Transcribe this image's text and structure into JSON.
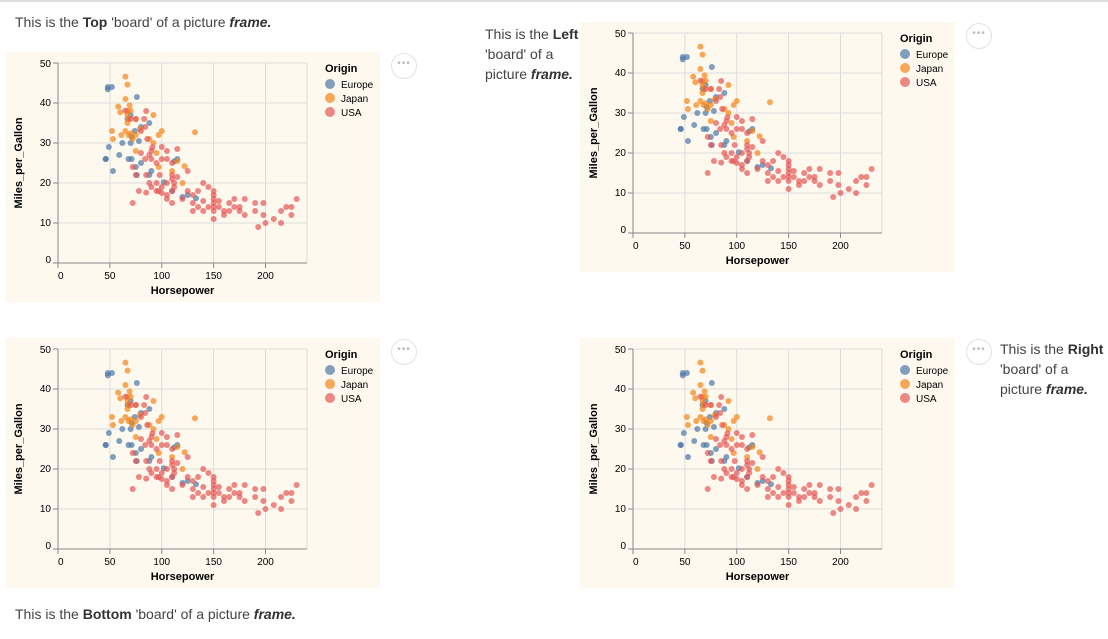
{
  "texts": {
    "top": {
      "pre": "This is the ",
      "bold": "Top",
      "mid": " 'board' of a picture ",
      "ital": "frame."
    },
    "left": {
      "pre": "This is the ",
      "bold": "Left",
      "mid": " 'board' of a picture ",
      "ital": "frame."
    },
    "right": {
      "pre": "This is the ",
      "bold": "Right",
      "mid": " 'board' of a picture ",
      "ital": "frame."
    },
    "bottom": {
      "pre": "This is the ",
      "bold": "Bottom",
      "mid": " 'board' of a picture ",
      "ital": "frame."
    }
  },
  "menu_label": "•••",
  "chart_data": {
    "type": "scatter",
    "title": "",
    "xlabel": "Horsepower",
    "ylabel": "Miles_per_Gallon",
    "xlim": [
      0,
      240
    ],
    "ylim": [
      0,
      50
    ],
    "xticks": [
      0,
      50,
      100,
      150,
      200
    ],
    "yticks": [
      0,
      10,
      20,
      30,
      40,
      50
    ],
    "grid": true,
    "legend": {
      "title": "Origin",
      "position": "right",
      "entries": [
        "Europe",
        "Japan",
        "USA"
      ]
    },
    "colors": {
      "Europe": "#4c78a8",
      "Japan": "#f58518",
      "USA": "#e45756"
    },
    "series": [
      {
        "name": "Europe",
        "points": [
          [
            46,
            26
          ],
          [
            48,
            44
          ],
          [
            48,
            43.4
          ],
          [
            52,
            44
          ],
          [
            49,
            29
          ],
          [
            59,
            27
          ],
          [
            62,
            30
          ],
          [
            67,
            36
          ],
          [
            70,
            30
          ],
          [
            71,
            26
          ],
          [
            75,
            24
          ],
          [
            76,
            41.5
          ],
          [
            78,
            30.5
          ],
          [
            80,
            25
          ],
          [
            88,
            22
          ],
          [
            90,
            23
          ],
          [
            102,
            20.2
          ],
          [
            110,
            18
          ],
          [
            112,
            25.4
          ],
          [
            115,
            26
          ],
          [
            120,
            16.5
          ],
          [
            125,
            17
          ],
          [
            133,
            16.2
          ],
          [
            76,
            22
          ],
          [
            88,
            35
          ],
          [
            70,
            37
          ],
          [
            71,
            31.5
          ],
          [
            68,
            26
          ],
          [
            53,
            23
          ],
          [
            46,
            26
          ],
          [
            74,
            33
          ],
          [
            80,
            34
          ]
        ]
      },
      {
        "name": "Japan",
        "points": [
          [
            65,
            46.6
          ],
          [
            67,
            44.6
          ],
          [
            65,
            41
          ],
          [
            69,
            39.4
          ],
          [
            58,
            39.1
          ],
          [
            60,
            37.7
          ],
          [
            67,
            38
          ],
          [
            68,
            36
          ],
          [
            52,
            33
          ],
          [
            53,
            31
          ],
          [
            61,
            32
          ],
          [
            65,
            33
          ],
          [
            67,
            35
          ],
          [
            68,
            32
          ],
          [
            70,
            32.4
          ],
          [
            72,
            31
          ],
          [
            75,
            32
          ],
          [
            75,
            36
          ],
          [
            79,
            33.5
          ],
          [
            88,
            31
          ],
          [
            92,
            37
          ],
          [
            97,
            32
          ],
          [
            100,
            33
          ],
          [
            95,
            27.5
          ],
          [
            97,
            24
          ],
          [
            120,
            20
          ],
          [
            122,
            24.2
          ],
          [
            132,
            32.7
          ],
          [
            92,
            30
          ],
          [
            110,
            23
          ],
          [
            115,
            25.5
          ],
          [
            67,
            37
          ],
          [
            70,
            38.1
          ],
          [
            75,
            28
          ]
        ]
      },
      {
        "name": "USA",
        "points": [
          [
            65,
            38.1
          ],
          [
            70,
            36
          ],
          [
            72,
            24
          ],
          [
            75,
            22
          ],
          [
            80,
            27.5
          ],
          [
            84,
            26
          ],
          [
            85,
            38
          ],
          [
            88,
            27
          ],
          [
            90,
            28
          ],
          [
            90,
            26
          ],
          [
            95,
            25
          ],
          [
            100,
            26
          ],
          [
            105,
            28
          ],
          [
            110,
            22
          ],
          [
            110,
            21
          ],
          [
            100,
            19
          ],
          [
            105,
            20
          ],
          [
            95,
            18
          ],
          [
            88,
            20
          ],
          [
            90,
            19
          ],
          [
            97,
            18
          ],
          [
            100,
            17.5
          ],
          [
            105,
            17
          ],
          [
            110,
            18
          ],
          [
            112,
            19
          ],
          [
            105,
            16
          ],
          [
            110,
            15
          ],
          [
            115,
            21.5
          ],
          [
            120,
            16
          ],
          [
            125,
            18
          ],
          [
            130,
            13
          ],
          [
            130,
            15
          ],
          [
            135,
            14
          ],
          [
            140,
            15.5
          ],
          [
            140,
            20
          ],
          [
            145,
            14
          ],
          [
            145,
            19
          ],
          [
            150,
            14
          ],
          [
            150,
            15
          ],
          [
            150,
            16
          ],
          [
            150,
            17
          ],
          [
            150,
            13
          ],
          [
            150,
            11
          ],
          [
            155,
            14
          ],
          [
            160,
            12
          ],
          [
            165,
            13
          ],
          [
            165,
            15
          ],
          [
            170,
            14
          ],
          [
            170,
            16
          ],
          [
            175,
            13
          ],
          [
            175,
            14
          ],
          [
            180,
            12
          ],
          [
            180,
            16
          ],
          [
            190,
            13
          ],
          [
            190,
            15
          ],
          [
            193,
            9
          ],
          [
            198,
            15
          ],
          [
            198,
            12
          ],
          [
            200,
            10
          ],
          [
            208,
            11
          ],
          [
            215,
            13
          ],
          [
            215,
            10
          ],
          [
            220,
            14
          ],
          [
            225,
            12
          ],
          [
            225,
            14
          ],
          [
            230,
            16
          ],
          [
            72,
            15
          ],
          [
            78,
            18
          ],
          [
            85,
            17.6
          ],
          [
            91,
            28.9
          ],
          [
            95,
            20
          ],
          [
            86,
            31
          ],
          [
            80,
            33
          ],
          [
            83,
            36
          ],
          [
            75,
            36
          ],
          [
            84,
            34
          ],
          [
            105,
            26
          ],
          [
            110,
            25
          ],
          [
            98,
            22
          ],
          [
            112,
            20
          ],
          [
            115,
            28.5
          ],
          [
            125,
            23
          ],
          [
            85,
            22
          ],
          [
            100,
            29
          ],
          [
            150,
            18
          ],
          [
            160,
            13
          ],
          [
            140,
            13
          ],
          [
            155,
            15.5
          ],
          [
            130,
            17
          ],
          [
            135,
            18
          ]
        ]
      }
    ]
  }
}
